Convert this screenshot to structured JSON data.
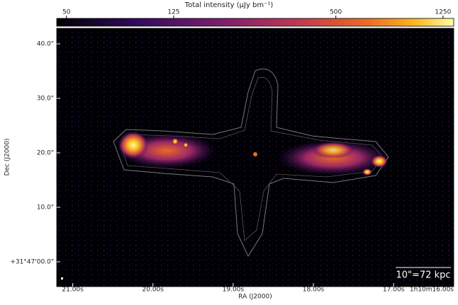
{
  "chart_data": {
    "type": "image",
    "title": "Total intensity (μJy bm⁻¹)",
    "colorbar": {
      "clim": [
        46,
        1370
      ],
      "ticks": [
        50,
        125,
        500,
        1250
      ],
      "log": true
    },
    "xlabel": "RA (J2000)",
    "ylabel": "Dec (J2000)",
    "xlim": [
      21.2,
      16.25
    ],
    "xticks": [
      {
        "value": 21,
        "label": "21.00s"
      },
      {
        "value": 20,
        "label": "20.00s"
      },
      {
        "value": 19,
        "label": "19.00s"
      },
      {
        "value": 18,
        "label": "18.00s"
      },
      {
        "value": 17,
        "label": "17.00s"
      },
      {
        "value": 16,
        "label": "1h10m16.00s"
      }
    ],
    "ylim": [
      -4.55,
      42.86
    ],
    "yticks": [
      {
        "value": 40,
        "label": "40.0\""
      },
      {
        "value": 30,
        "label": "30.0\""
      },
      {
        "value": 20,
        "label": "20.0\""
      },
      {
        "value": 10,
        "label": "10.0\""
      },
      {
        "value": 0,
        "label": "+31°47'00.0\""
      }
    ],
    "annotation": "10\"=72 kpc"
  }
}
